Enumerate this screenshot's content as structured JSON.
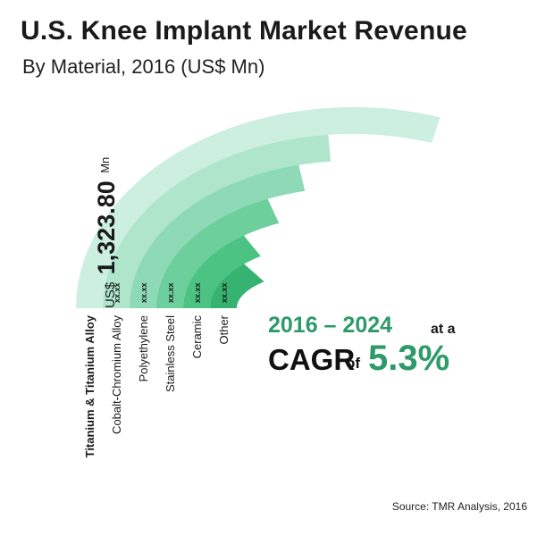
{
  "header": {
    "title": "U.S. Knee Implant Market Revenue",
    "subtitle": "By Material, 2016 (US$ Mn)"
  },
  "chart_data": {
    "type": "radial-bar",
    "title": "U.S. Knee Implant Market Revenue",
    "subtitle": "By Material, 2016 (US$ Mn)",
    "categories": [
      "Titanium & Titanium Alloy",
      "Cobalt-Chromium Alloy",
      "Polyethylene",
      "Stainless Steel",
      "Ceramic",
      "Other"
    ],
    "sweep_percent": [
      100,
      92,
      80,
      63,
      42,
      28
    ],
    "value_labels": [
      "",
      "xx.xx",
      "xx.xx",
      "xx.xx",
      "xx.xx",
      "xx.xx"
    ],
    "colors": [
      "#ccefdf",
      "#aee5cb",
      "#8fdab6",
      "#6ccf9c",
      "#4cc383",
      "#36b371"
    ],
    "total": {
      "prefix": "US$",
      "value": "1,323.80",
      "unit": "Mn"
    }
  },
  "callout": {
    "period": "2016 – 2024",
    "at_a": "at a",
    "label": "CAGR",
    "of": "of",
    "value": "5.3%",
    "accent_color": "#2e9a6a"
  },
  "footer": {
    "source": "Source: TMR Analysis, 2016"
  }
}
